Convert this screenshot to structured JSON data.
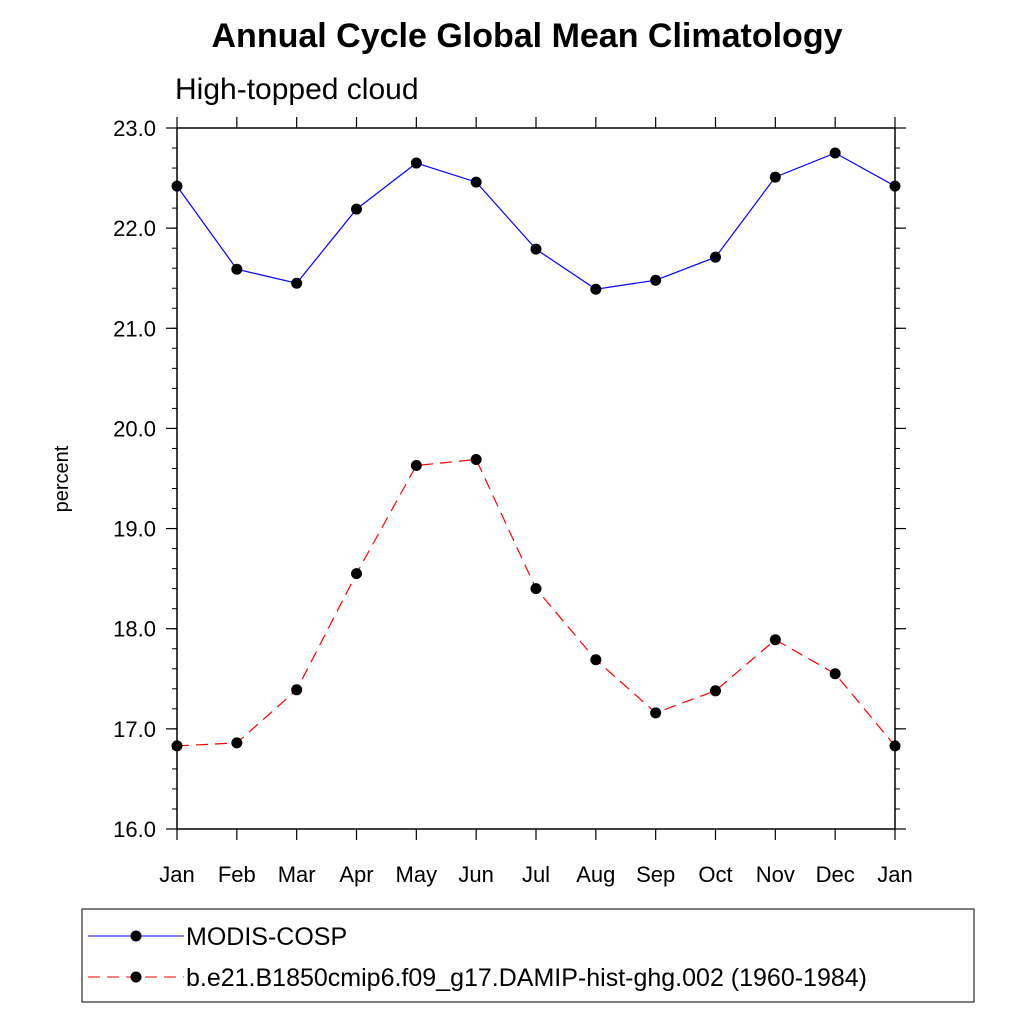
{
  "chart_data": {
    "type": "line",
    "title": "Annual Cycle Global Mean Climatology",
    "subtitle": "High-topped cloud",
    "ylabel": "percent",
    "xlabel": "",
    "ylim": [
      16.0,
      23.0
    ],
    "yticks": [
      "16.0",
      "17.0",
      "18.0",
      "19.0",
      "20.0",
      "21.0",
      "22.0",
      "23.0"
    ],
    "ytick_values": [
      16,
      17,
      18,
      19,
      20,
      21,
      22,
      23
    ],
    "categories": [
      "Jan",
      "Feb",
      "Mar",
      "Apr",
      "May",
      "Jun",
      "Jul",
      "Aug",
      "Sep",
      "Oct",
      "Nov",
      "Dec",
      "Jan"
    ],
    "grid": false,
    "legend_position": "bottom",
    "series": [
      {
        "name": "MODIS-COSP",
        "color": "#0000ff",
        "style": "solid",
        "marker": "filled-circle",
        "values": [
          22.42,
          21.59,
          21.45,
          22.19,
          22.65,
          22.46,
          21.79,
          21.39,
          21.48,
          21.71,
          22.51,
          22.75,
          22.42
        ]
      },
      {
        "name": "b.e21.B1850cmip6.f09_g17.DAMIP-hist-ghg.002 (1960-1984)",
        "color": "#ff0000",
        "style": "dashed",
        "marker": "filled-circle",
        "values": [
          16.83,
          16.86,
          17.39,
          18.55,
          19.63,
          19.69,
          18.4,
          17.69,
          17.16,
          17.38,
          17.89,
          17.55,
          16.83
        ]
      }
    ]
  }
}
